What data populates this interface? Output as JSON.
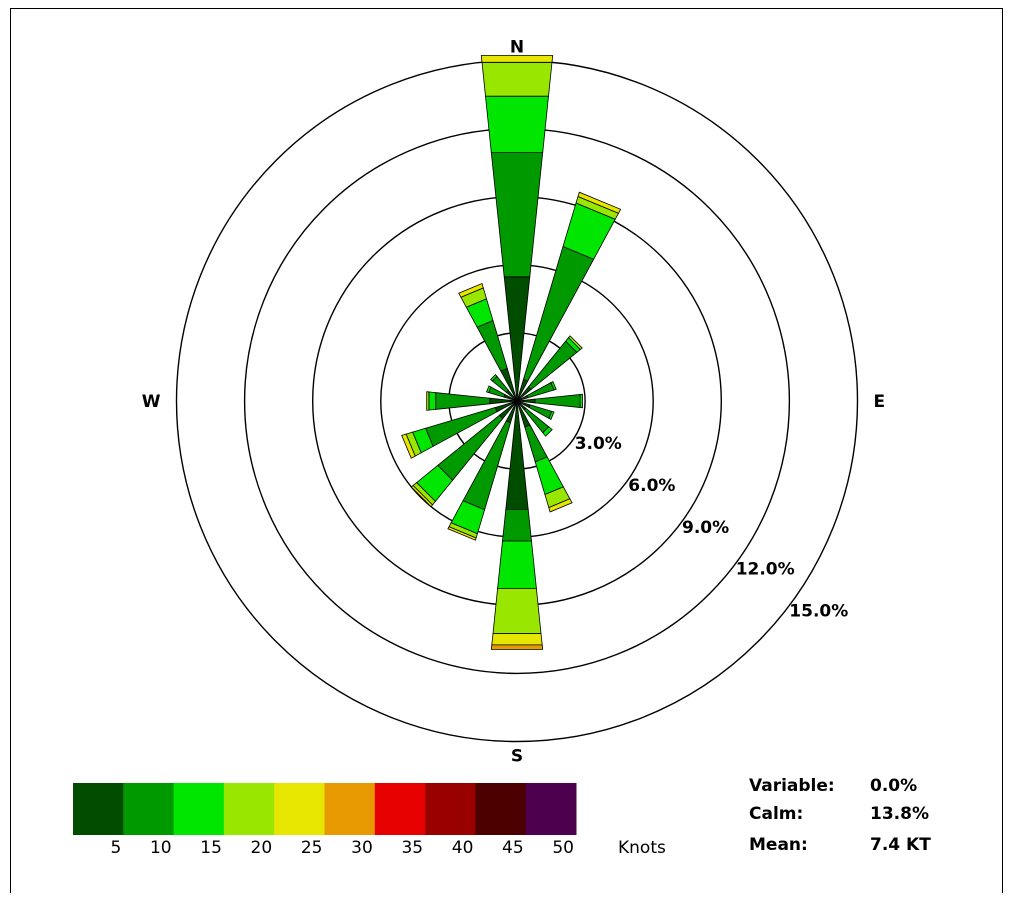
{
  "chart_data": {
    "type": "windrose",
    "compass": [
      "N",
      "E",
      "S",
      "W"
    ],
    "rings": [
      3.0,
      6.0,
      9.0,
      12.0,
      15.0
    ],
    "ring_labels": [
      "3.0%",
      "6.0%",
      "9.0%",
      "12.0%",
      "15.0%"
    ],
    "speed_bins": [
      {
        "label": "5",
        "color": "#004d00"
      },
      {
        "label": "10",
        "color": "#009900"
      },
      {
        "label": "15",
        "color": "#00e600"
      },
      {
        "label": "20",
        "color": "#99e600"
      },
      {
        "label": "25",
        "color": "#e6e600"
      },
      {
        "label": "30",
        "color": "#e69900"
      },
      {
        "label": "35",
        "color": "#e60000"
      },
      {
        "label": "40",
        "color": "#990000"
      },
      {
        "label": "45",
        "color": "#4d0000"
      },
      {
        "label": "50",
        "color": "#4d004d"
      }
    ],
    "units": "Knots",
    "directions": [
      {
        "dir": 0,
        "values": [
          5.5,
          5.5,
          2.5,
          1.5,
          0.3,
          0.0,
          0.0,
          0.0,
          0.0,
          0.0
        ]
      },
      {
        "dir": 22.5,
        "values": [
          1.0,
          6.1,
          2.0,
          0.3,
          0.2,
          0.0,
          0.0,
          0.0,
          0.0,
          0.0
        ]
      },
      {
        "dir": 45,
        "values": [
          0.8,
          2.6,
          0.2,
          0.1,
          0.0,
          0.0,
          0.0,
          0.0,
          0.0,
          0.0
        ]
      },
      {
        "dir": 67.5,
        "values": [
          0.5,
          1.2,
          0.1,
          0.0,
          0.0,
          0.0,
          0.0,
          0.0,
          0.0,
          0.0
        ]
      },
      {
        "dir": 90,
        "values": [
          0.8,
          2.0,
          0.1,
          0.0,
          0.0,
          0.0,
          0.0,
          0.0,
          0.0,
          0.0
        ]
      },
      {
        "dir": 112.5,
        "values": [
          0.6,
          1.0,
          0.1,
          0.0,
          0.0,
          0.0,
          0.0,
          0.0,
          0.0,
          0.0
        ]
      },
      {
        "dir": 135,
        "values": [
          0.5,
          1.3,
          0.2,
          0.0,
          0.0,
          0.0,
          0.0,
          0.0,
          0.0,
          0.0
        ]
      },
      {
        "dir": 157.5,
        "values": [
          1.2,
          1.6,
          1.5,
          0.6,
          0.2,
          0.0,
          0.0,
          0.0,
          0.0,
          0.0
        ]
      },
      {
        "dir": 180,
        "values": [
          4.8,
          1.4,
          2.1,
          2.0,
          0.5,
          0.2,
          0.0,
          0.0,
          0.0,
          0.0
        ]
      },
      {
        "dir": 202.5,
        "values": [
          1.0,
          4.0,
          1.1,
          0.2,
          0.1,
          0.0,
          0.0,
          0.0,
          0.0,
          0.0
        ]
      },
      {
        "dir": 225,
        "values": [
          1.0,
          3.5,
          1.2,
          0.2,
          0.1,
          0.0,
          0.0,
          0.0,
          0.0,
          0.0
        ]
      },
      {
        "dir": 247.5,
        "values": [
          1.0,
          3.2,
          0.6,
          0.3,
          0.2,
          0.0,
          0.0,
          0.0,
          0.0,
          0.0
        ]
      },
      {
        "dir": 270,
        "values": [
          1.2,
          2.4,
          0.3,
          0.1,
          0.0,
          0.0,
          0.0,
          0.0,
          0.0,
          0.0
        ]
      },
      {
        "dir": 292.5,
        "values": [
          0.6,
          0.7,
          0.1,
          0.0,
          0.0,
          0.0,
          0.0,
          0.0,
          0.0,
          0.0
        ]
      },
      {
        "dir": 315,
        "values": [
          0.6,
          0.8,
          0.1,
          0.0,
          0.0,
          0.0,
          0.0,
          0.0,
          0.0,
          0.0
        ]
      },
      {
        "dir": 337.5,
        "values": [
          1.5,
          2.2,
          1.0,
          0.5,
          0.2,
          0.0,
          0.0,
          0.0,
          0.0,
          0.0
        ]
      }
    ]
  },
  "stats": {
    "variable_label": "Variable:",
    "variable_value": "0.0%",
    "calm_label": "Calm:",
    "calm_value": "13.8%",
    "mean_label": "Mean:",
    "mean_value": "7.4 KT"
  }
}
